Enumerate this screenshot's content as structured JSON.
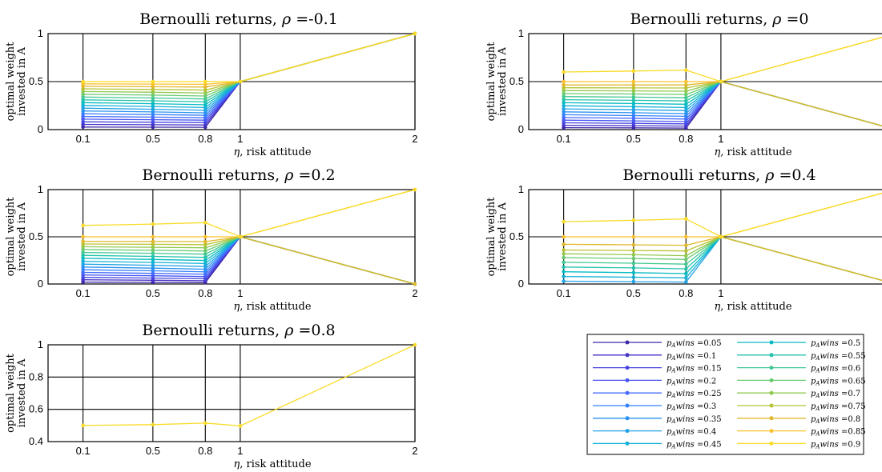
{
  "shared": {
    "x_tick_labels": [
      "0.1",
      "0.5",
      "0.8",
      "1",
      "2"
    ],
    "xlabel_symbol": "η",
    "xlabel_text": ", risk attitude",
    "ylabel_line1": "optimal weight",
    "ylabel_line2": "invested in A"
  },
  "legend": {
    "prefix": "p",
    "subscript": "A",
    "suffix": "wins =",
    "values": [
      "0.05",
      "0.1",
      "0.15",
      "0.2",
      "0.25",
      "0.3",
      "0.35",
      "0.4",
      "0.45",
      "0.5",
      "0.55",
      "0.6",
      "0.65",
      "0.7",
      "0.75",
      "0.8",
      "0.85",
      "0.9"
    ],
    "colors": [
      "#3e26a8",
      "#4433c6",
      "#4745e0",
      "#4857f2",
      "#446bfc",
      "#3580fb",
      "#2a92f1",
      "#22a2e5",
      "#13b1d6",
      "#06bbc2",
      "#24c3ac",
      "#43c893",
      "#69cb71",
      "#90c94f",
      "#b8c332",
      "#e0b82d",
      "#fcc22e",
      "#f9db25"
    ]
  },
  "chart_data": [
    {
      "type": "line",
      "title": "Bernoulli returns,",
      "title_symbol": "ρ",
      "title_value": " =-0.1",
      "x": [
        0.1,
        0.5,
        0.8,
        1,
        2
      ],
      "yticks": [
        "0",
        "0.5",
        "1"
      ],
      "ylim": [
        0,
        1
      ],
      "xlim": [
        -0.1,
        2
      ],
      "series": [
        {
          "values": [
            0.027,
            0.025,
            0.024,
            0.5,
            1
          ]
        },
        {
          "values": [
            0.054,
            0.051,
            0.048,
            0.5,
            1
          ]
        },
        {
          "values": [
            0.081,
            0.077,
            0.073,
            0.5,
            1
          ]
        },
        {
          "values": [
            0.109,
            0.103,
            0.098,
            0.5,
            1
          ]
        },
        {
          "values": [
            0.137,
            0.13,
            0.123,
            0.5,
            1
          ]
        },
        {
          "values": [
            0.165,
            0.157,
            0.149,
            0.5,
            1
          ]
        },
        {
          "values": [
            0.194,
            0.184,
            0.175,
            0.5,
            1
          ]
        },
        {
          "values": [
            0.223,
            0.212,
            0.202,
            0.5,
            1
          ]
        },
        {
          "values": [
            0.252,
            0.241,
            0.23,
            0.5,
            1
          ]
        },
        {
          "values": [
            0.281,
            0.27,
            0.259,
            0.5,
            1
          ]
        },
        {
          "values": [
            0.31,
            0.3,
            0.289,
            0.5,
            1
          ]
        },
        {
          "values": [
            0.339,
            0.329,
            0.319,
            0.5,
            1
          ]
        },
        {
          "values": [
            0.368,
            0.359,
            0.35,
            0.5,
            1
          ]
        },
        {
          "values": [
            0.397,
            0.389,
            0.381,
            0.5,
            1
          ]
        },
        {
          "values": [
            0.425,
            0.418,
            0.412,
            0.5,
            1
          ]
        },
        {
          "values": [
            0.452,
            0.447,
            0.443,
            0.5,
            1
          ]
        },
        {
          "values": [
            0.477,
            0.474,
            0.472,
            0.5,
            1
          ]
        },
        {
          "values": [
            0.5,
            0.5,
            0.5,
            0.5,
            1
          ]
        }
      ]
    },
    {
      "type": "line",
      "title": "Bernoulli returns,",
      "title_symbol": "ρ",
      "title_value": " =0",
      "x": [
        0.1,
        0.5,
        0.8,
        1,
        2
      ],
      "yticks": [
        "0",
        "0.5",
        "1"
      ],
      "ylim": [
        0,
        1
      ],
      "xlim": [
        -0.1,
        2
      ],
      "series": [
        {
          "values": [
            0.02,
            0.018,
            0.016,
            0.5,
            0.0
          ]
        },
        {
          "values": [
            0.045,
            0.041,
            0.037,
            0.5,
            0.0
          ]
        },
        {
          "values": [
            0.071,
            0.065,
            0.06,
            0.5,
            0.0
          ]
        },
        {
          "values": [
            0.098,
            0.091,
            0.084,
            0.5,
            0.0
          ]
        },
        {
          "values": [
            0.126,
            0.118,
            0.11,
            0.5,
            0.0
          ]
        },
        {
          "values": [
            0.155,
            0.146,
            0.138,
            0.5,
            0.0
          ]
        },
        {
          "values": [
            0.185,
            0.176,
            0.167,
            0.5,
            0.0
          ]
        },
        {
          "values": [
            0.216,
            0.207,
            0.198,
            0.5,
            0.0
          ]
        },
        {
          "values": [
            0.248,
            0.239,
            0.23,
            0.5,
            0.0
          ]
        },
        {
          "values": [
            0.28,
            0.272,
            0.264,
            0.5,
            0.0
          ]
        },
        {
          "values": [
            0.312,
            0.305,
            0.298,
            0.5,
            0.0
          ]
        },
        {
          "values": [
            0.344,
            0.338,
            0.332,
            0.5,
            0.0
          ]
        },
        {
          "values": [
            0.375,
            0.371,
            0.366,
            0.5,
            0.0
          ]
        },
        {
          "values": [
            0.406,
            0.403,
            0.4,
            0.5,
            0.0
          ]
        },
        {
          "values": [
            0.436,
            0.434,
            0.433,
            0.5,
            0.0
          ]
        },
        {
          "values": [
            0.465,
            0.465,
            0.465,
            0.5,
            0.0
          ]
        },
        {
          "values": [
            0.5,
            0.5,
            0.5,
            0.5,
            1.0
          ]
        },
        {
          "values": [
            0.6,
            0.61,
            0.62,
            0.5,
            1.0
          ]
        }
      ]
    },
    {
      "type": "line",
      "title": "Bernoulli returns,",
      "title_symbol": "ρ",
      "title_value": " =0.2",
      "x": [
        0.1,
        0.5,
        0.8,
        1,
        2
      ],
      "yticks": [
        "0",
        "0.5",
        "1"
      ],
      "ylim": [
        0,
        1
      ],
      "xlim": [
        -0.1,
        2
      ],
      "series": [
        {
          "values": [
            0.02,
            0.017,
            0.015,
            0.5,
            0.0
          ]
        },
        {
          "values": [
            0.045,
            0.04,
            0.035,
            0.5,
            0.0
          ]
        },
        {
          "values": [
            0.07,
            0.063,
            0.056,
            0.5,
            0.0
          ]
        },
        {
          "values": [
            0.096,
            0.087,
            0.079,
            0.5,
            0.0
          ]
        },
        {
          "values": [
            0.123,
            0.113,
            0.103,
            0.5,
            0.0
          ]
        },
        {
          "values": [
            0.151,
            0.14,
            0.129,
            0.5,
            0.0
          ]
        },
        {
          "values": [
            0.18,
            0.168,
            0.157,
            0.5,
            0.0
          ]
        },
        {
          "values": [
            0.21,
            0.198,
            0.186,
            0.5,
            0.0
          ]
        },
        {
          "values": [
            0.241,
            0.229,
            0.217,
            0.5,
            0.0
          ]
        },
        {
          "values": [
            0.272,
            0.26,
            0.249,
            0.5,
            0.0
          ]
        },
        {
          "values": [
            0.303,
            0.292,
            0.282,
            0.5,
            0.0
          ]
        },
        {
          "values": [
            0.334,
            0.325,
            0.316,
            0.5,
            0.0
          ]
        },
        {
          "values": [
            0.365,
            0.357,
            0.35,
            0.5,
            0.0
          ]
        },
        {
          "values": [
            0.395,
            0.389,
            0.384,
            0.5,
            0.0
          ]
        },
        {
          "values": [
            0.424,
            0.42,
            0.417,
            0.5,
            0.0
          ]
        },
        {
          "values": [
            0.452,
            0.45,
            0.449,
            0.5,
            0.0
          ]
        },
        {
          "values": [
            0.5,
            0.5,
            0.5,
            0.5,
            1.0
          ]
        },
        {
          "values": [
            0.62,
            0.635,
            0.65,
            0.5,
            1.0
          ]
        }
      ]
    },
    {
      "type": "line",
      "title": "Bernoulli returns,",
      "title_symbol": "ρ",
      "title_value": " =0.4",
      "x": [
        0.1,
        0.5,
        0.8,
        1,
        2
      ],
      "yticks": [
        "0",
        "0.5",
        "1"
      ],
      "ylim": [
        0,
        1
      ],
      "xlim": [
        -0.1,
        2
      ],
      "series": [
        {
          "values": [
            0.03,
            0.025,
            0.02,
            0.5,
            0.0
          ]
        },
        {
          "values": [
            0.08,
            0.072,
            0.065,
            0.5,
            0.0
          ]
        },
        {
          "values": [
            0.13,
            0.12,
            0.11,
            0.5,
            0.0
          ]
        },
        {
          "values": [
            0.18,
            0.17,
            0.16,
            0.5,
            0.0
          ]
        },
        {
          "values": [
            0.23,
            0.22,
            0.21,
            0.5,
            0.0
          ]
        },
        {
          "values": [
            0.28,
            0.27,
            0.26,
            0.5,
            0.0
          ]
        },
        {
          "values": [
            0.32,
            0.31,
            0.3,
            0.5,
            0.0
          ]
        },
        {
          "values": [
            0.36,
            0.355,
            0.35,
            0.5,
            0.0
          ]
        },
        {
          "values": [
            0.42,
            0.415,
            0.41,
            0.5,
            0.0
          ]
        },
        {
          "values": [
            0.5,
            0.5,
            0.5,
            0.5,
            1.0
          ]
        },
        {
          "values": [
            0.66,
            0.675,
            0.69,
            0.5,
            1.0
          ]
        }
      ]
    },
    {
      "type": "line",
      "title": "Bernoulli returns,",
      "title_symbol": "ρ",
      "title_value": " =0.8",
      "x": [
        0.1,
        0.5,
        0.8,
        1,
        2
      ],
      "yticks": [
        "0.4",
        "0.6",
        "0.8",
        "1"
      ],
      "ylim": [
        0.4,
        1
      ],
      "xlim": [
        -0.1,
        2
      ],
      "series": [
        {
          "values": [
            0.5,
            0.505,
            0.515,
            0.497,
            1.0
          ]
        }
      ]
    }
  ]
}
